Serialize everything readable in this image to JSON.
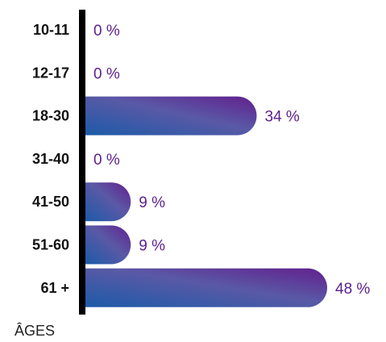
{
  "chart_data": {
    "type": "bar",
    "orientation": "horizontal",
    "categories": [
      "10-11",
      "12-17",
      "18-30",
      "31-40",
      "41-50",
      "51-60",
      "61 +"
    ],
    "values": [
      0,
      0,
      34,
      0,
      9,
      9,
      48
    ],
    "value_labels": [
      "0 %",
      "0 %",
      "34 %",
      "0 %",
      "9 %",
      "9 %",
      "48 %"
    ],
    "unit": "%",
    "axis_title": "ÂGES",
    "xlim": [
      0,
      50
    ],
    "grid": false,
    "legend": false,
    "colors": {
      "gradient_start": "#1c5aa8",
      "gradient_mid": "#5a59a6",
      "gradient_end": "#62208d",
      "axis": "#000000",
      "value_text": "#5a1f8c"
    }
  }
}
